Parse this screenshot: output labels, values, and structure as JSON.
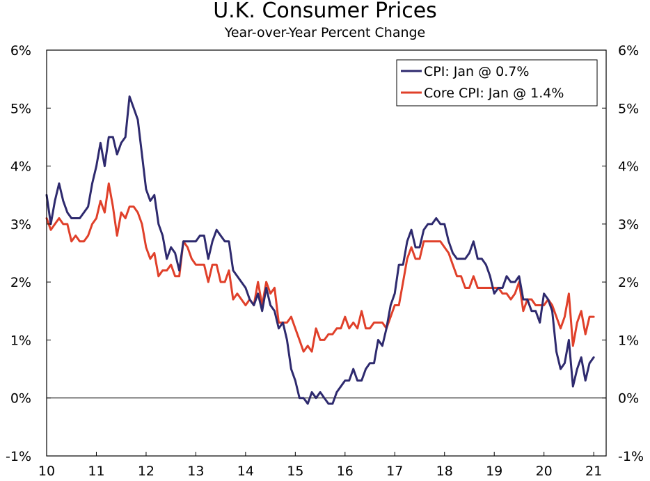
{
  "chart_data": {
    "type": "line",
    "title": "U.K. Consumer Prices",
    "subtitle": "Year-over-Year Percent Change",
    "xlabel": "",
    "ylabel": "",
    "xlim": [
      2010.0,
      2021.25
    ],
    "ylim": [
      -1,
      6
    ],
    "x_ticks": [
      {
        "value": 2010,
        "label": "10"
      },
      {
        "value": 2011,
        "label": "11"
      },
      {
        "value": 2012,
        "label": "12"
      },
      {
        "value": 2013,
        "label": "13"
      },
      {
        "value": 2014,
        "label": "14"
      },
      {
        "value": 2015,
        "label": "15"
      },
      {
        "value": 2016,
        "label": "16"
      },
      {
        "value": 2017,
        "label": "17"
      },
      {
        "value": 2018,
        "label": "18"
      },
      {
        "value": 2019,
        "label": "19"
      },
      {
        "value": 2020,
        "label": "20"
      },
      {
        "value": 2021,
        "label": "21"
      }
    ],
    "y_ticks": [
      {
        "value": -1,
        "label": "-1%"
      },
      {
        "value": 0,
        "label": "0%"
      },
      {
        "value": 1,
        "label": "1%"
      },
      {
        "value": 2,
        "label": "2%"
      },
      {
        "value": 3,
        "label": "3%"
      },
      {
        "value": 4,
        "label": "4%"
      },
      {
        "value": 5,
        "label": "5%"
      },
      {
        "value": 6,
        "label": "6%"
      }
    ],
    "legend_position": "top-right",
    "series": [
      {
        "name": "CPI: Jan @ 0.7%",
        "color": "#2e2a6e",
        "start": 2010.0,
        "step": 0.08333,
        "values": [
          3.5,
          3.0,
          3.4,
          3.7,
          3.4,
          3.2,
          3.1,
          3.1,
          3.1,
          3.2,
          3.3,
          3.7,
          4.0,
          4.4,
          4.0,
          4.5,
          4.5,
          4.2,
          4.4,
          4.5,
          5.2,
          5.0,
          4.8,
          4.2,
          3.6,
          3.4,
          3.5,
          3.0,
          2.8,
          2.4,
          2.6,
          2.5,
          2.2,
          2.7,
          2.7,
          2.7,
          2.7,
          2.8,
          2.8,
          2.4,
          2.7,
          2.9,
          2.8,
          2.7,
          2.7,
          2.2,
          2.1,
          2.0,
          1.9,
          1.7,
          1.6,
          1.8,
          1.5,
          1.9,
          1.6,
          1.5,
          1.2,
          1.3,
          1.0,
          0.5,
          0.3,
          0.0,
          0.0,
          -0.1,
          0.1,
          0.0,
          0.1,
          0.0,
          -0.1,
          -0.1,
          0.1,
          0.2,
          0.3,
          0.3,
          0.5,
          0.3,
          0.3,
          0.5,
          0.6,
          0.6,
          1.0,
          0.9,
          1.2,
          1.6,
          1.8,
          2.3,
          2.3,
          2.7,
          2.9,
          2.6,
          2.6,
          2.9,
          3.0,
          3.0,
          3.1,
          3.0,
          3.0,
          2.7,
          2.5,
          2.4,
          2.4,
          2.4,
          2.5,
          2.7,
          2.4,
          2.4,
          2.3,
          2.1,
          1.8,
          1.9,
          1.9,
          2.1,
          2.0,
          2.0,
          2.1,
          1.7,
          1.7,
          1.5,
          1.5,
          1.3,
          1.8,
          1.7,
          1.5,
          0.8,
          0.5,
          0.6,
          1.0,
          0.2,
          0.5,
          0.7,
          0.3,
          0.6,
          0.7
        ]
      },
      {
        "name": "Core CPI: Jan @ 1.4%",
        "color": "#e0402a",
        "start": 2010.0,
        "step": 0.08333,
        "values": [
          3.1,
          2.9,
          3.0,
          3.1,
          3.0,
          3.0,
          2.7,
          2.8,
          2.7,
          2.7,
          2.8,
          3.0,
          3.1,
          3.4,
          3.2,
          3.7,
          3.3,
          2.8,
          3.2,
          3.1,
          3.3,
          3.3,
          3.2,
          3.0,
          2.6,
          2.4,
          2.5,
          2.1,
          2.2,
          2.2,
          2.3,
          2.1,
          2.1,
          2.7,
          2.6,
          2.4,
          2.3,
          2.3,
          2.3,
          2.0,
          2.3,
          2.3,
          2.0,
          2.0,
          2.2,
          1.7,
          1.8,
          1.7,
          1.6,
          1.7,
          1.6,
          2.0,
          1.6,
          2.0,
          1.8,
          1.9,
          1.3,
          1.3,
          1.3,
          1.4,
          1.2,
          1.0,
          0.8,
          0.9,
          0.8,
          1.2,
          1.0,
          1.0,
          1.1,
          1.1,
          1.2,
          1.2,
          1.4,
          1.2,
          1.3,
          1.2,
          1.5,
          1.2,
          1.2,
          1.3,
          1.3,
          1.3,
          1.2,
          1.4,
          1.6,
          1.6,
          2.0,
          2.4,
          2.6,
          2.4,
          2.4,
          2.7,
          2.7,
          2.7,
          2.7,
          2.7,
          2.6,
          2.5,
          2.3,
          2.1,
          2.1,
          1.9,
          1.9,
          2.1,
          1.9,
          1.9,
          1.9,
          1.9,
          1.9,
          1.9,
          1.8,
          1.8,
          1.7,
          1.8,
          2.0,
          1.5,
          1.7,
          1.7,
          1.6,
          1.6,
          1.6,
          1.7,
          1.6,
          1.4,
          1.2,
          1.4,
          1.8,
          0.9,
          1.3,
          1.5,
          1.1,
          1.4,
          1.4
        ]
      }
    ]
  }
}
